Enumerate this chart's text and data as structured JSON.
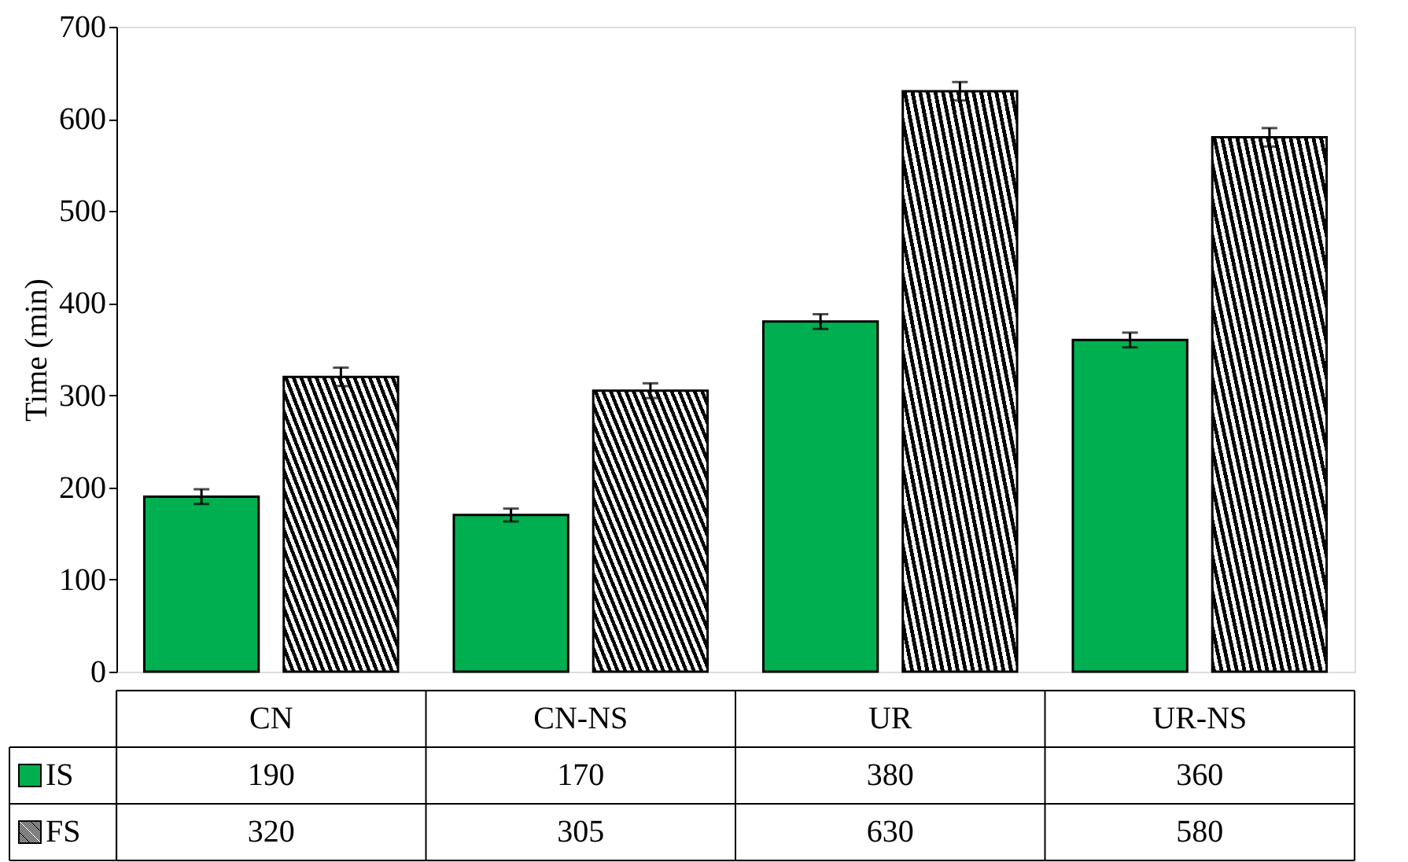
{
  "chart_data": {
    "type": "bar",
    "ylabel": "Time (min)",
    "categories": [
      "CN",
      "CN-NS",
      "UR",
      "UR-NS"
    ],
    "series": [
      {
        "name": "IS",
        "color": "#00b050",
        "values": [
          190,
          170,
          380,
          360
        ],
        "errors": [
          8,
          7,
          8,
          8
        ]
      },
      {
        "name": "FS",
        "color": "#000000",
        "values": [
          320,
          305,
          630,
          580
        ],
        "errors": [
          10,
          8,
          10,
          10
        ]
      }
    ],
    "ylim": [
      0,
      700
    ],
    "yticks": [
      0,
      100,
      200,
      300,
      400,
      500,
      600,
      700
    ],
    "grid": false,
    "legend": "bottom left",
    "data_labels": true
  }
}
